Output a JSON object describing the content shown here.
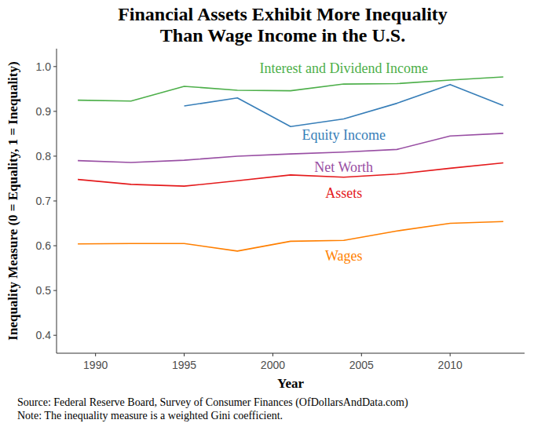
{
  "chart_data": {
    "type": "line",
    "title": [
      "Financial Assets Exhibit More Inequality",
      "Than Wage Income in the U.S."
    ],
    "x_label": "Year",
    "y_label": "Inequality Measure (0 = Equality, 1 = Inequality)",
    "source": "Source:  Federal Reserve Board, Survey of Consumer Finances (OfDollarsAndData.com)",
    "note": "Note:  The inequality measure is a weighted Gini coefficient.",
    "x": [
      1989,
      1992,
      1995,
      1998,
      2001,
      2004,
      2007,
      2010,
      2013
    ],
    "xlim": [
      1987.8,
      2014.2
    ],
    "xticks": [
      1990,
      1995,
      2000,
      2005,
      2010
    ],
    "ylim": [
      0.36,
      1.04
    ],
    "yticks": [
      0.4,
      0.5,
      0.6,
      0.7,
      0.8,
      0.9,
      {
        "value": 1,
        "label": "1.0"
      }
    ],
    "grid": false,
    "series": [
      {
        "name": "Interest and Dividend Income",
        "color": "#4daf4a",
        "label_x": 2004,
        "label_y": 0.996,
        "values": [
          0.925,
          0.923,
          0.956,
          0.947,
          0.946,
          0.961,
          0.962,
          0.97,
          0.977
        ]
      },
      {
        "name": "Equity Income",
        "color": "#377eb8",
        "label_x": 2004,
        "label_y": 0.848,
        "values": [
          null,
          null,
          0.912,
          0.93,
          0.866,
          0.883,
          0.918,
          0.96,
          0.913
        ]
      },
      {
        "name": "Net Worth",
        "color": "#984ea3",
        "label_x": 2004,
        "label_y": 0.776,
        "values": [
          0.79,
          0.786,
          0.791,
          0.8,
          0.805,
          0.809,
          0.815,
          0.845,
          0.851
        ]
      },
      {
        "name": "Assets",
        "color": "#e41a1c",
        "label_x": 2004,
        "label_y": 0.718,
        "values": [
          0.748,
          0.737,
          0.733,
          0.745,
          0.758,
          0.753,
          0.76,
          0.773,
          0.785
        ]
      },
      {
        "name": "Wages",
        "color": "#ff7f00",
        "label_x": 2004,
        "label_y": 0.577,
        "values": [
          0.604,
          0.605,
          0.605,
          0.588,
          0.61,
          0.612,
          0.633,
          0.65,
          0.654
        ]
      }
    ]
  }
}
